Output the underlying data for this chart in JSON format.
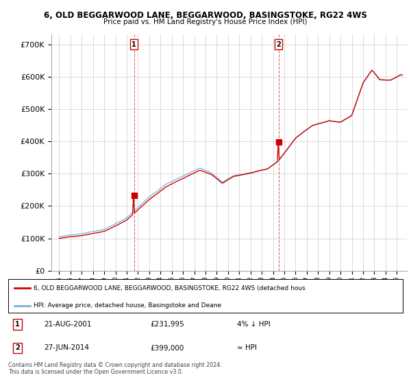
{
  "title1": "6, OLD BEGGARWOOD LANE, BEGGARWOOD, BASINGSTOKE, RG22 4WS",
  "title2": "Price paid vs. HM Land Registry's House Price Index (HPI)",
  "ylabel_ticks": [
    "£0",
    "£100K",
    "£200K",
    "£300K",
    "£400K",
    "£500K",
    "£600K",
    "£700K"
  ],
  "ytick_vals": [
    0,
    100000,
    200000,
    300000,
    400000,
    500000,
    600000,
    700000
  ],
  "ylim": [
    0,
    730000
  ],
  "sale1_year": 2001.64,
  "sale1_price": 231995,
  "sale1_label": "1",
  "sale1_date": "21-AUG-2001",
  "sale1_text": "£231,995",
  "sale1_rel": "4% ↓ HPI",
  "sale2_year": 2014.49,
  "sale2_price": 399000,
  "sale2_label": "2",
  "sale2_date": "27-JUN-2014",
  "sale2_text": "£399,000",
  "sale2_rel": "≈ HPI",
  "red_color": "#cc0000",
  "blue_color": "#7ab0d4",
  "legend_label1": "6, OLD BEGGARWOOD LANE, BEGGARWOOD, BASINGSTOKE, RG22 4WS (detached hous",
  "legend_label2": "HPI: Average price, detached house, Basingstoke and Deane",
  "footer": "Contains HM Land Registry data © Crown copyright and database right 2024.\nThis data is licensed under the Open Government Licence v3.0.",
  "bg_color": "#ffffff",
  "grid_color": "#cccccc",
  "hpi_anchors_years": [
    1995.0,
    1997.0,
    1999.0,
    2001.0,
    2003.0,
    2004.5,
    2006.0,
    2007.5,
    2008.5,
    2009.5,
    2010.5,
    2012.0,
    2013.5,
    2014.5,
    2016.0,
    2017.5,
    2019.0,
    2020.0,
    2021.0,
    2022.0,
    2022.8,
    2023.5,
    2024.5,
    2025.3
  ],
  "hpi_anchors_vals": [
    105000,
    115000,
    130000,
    165000,
    230000,
    270000,
    295000,
    320000,
    305000,
    275000,
    295000,
    305000,
    315000,
    340000,
    410000,
    450000,
    465000,
    460000,
    480000,
    580000,
    620000,
    590000,
    590000,
    605000
  ]
}
